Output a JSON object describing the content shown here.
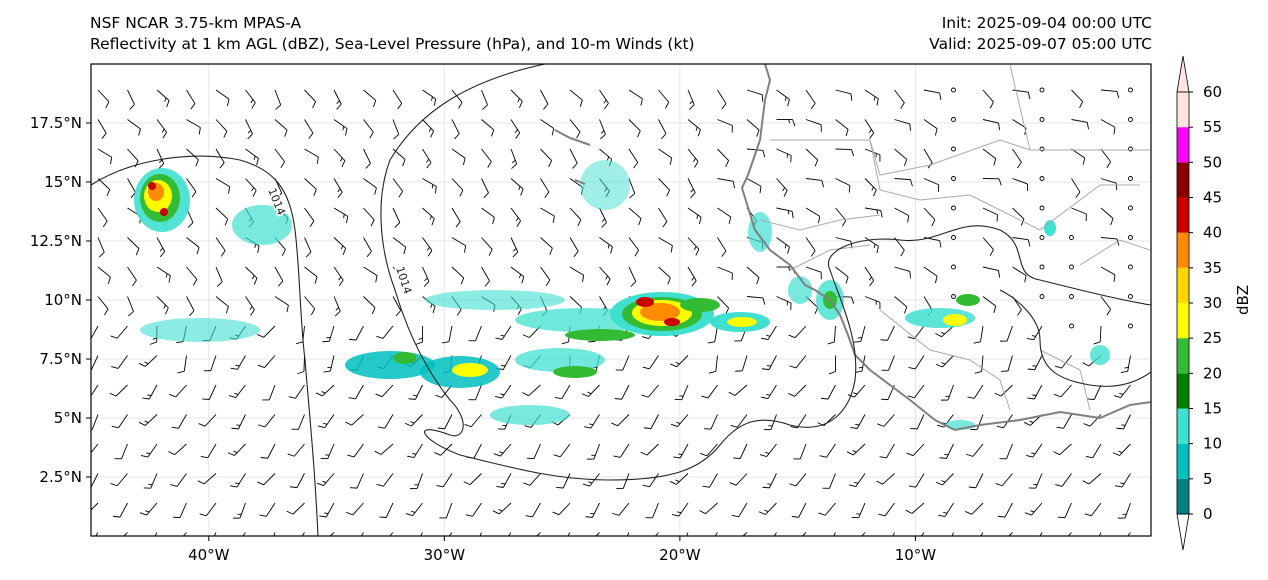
{
  "header": {
    "model": "NSF NCAR 3.75-km MPAS-A",
    "fields": "Reflectivity at 1 km AGL (dBZ), Sea-Level Pressure (hPa), and 10-m Winds (kt)",
    "init": "Init: 2025-09-04 00:00 UTC",
    "valid": "Valid: 2025-09-07 05:00 UTC"
  },
  "axes": {
    "lon_ticks": [
      "40°W",
      "30°W",
      "20°W",
      "10°W"
    ],
    "lat_ticks": [
      "17.5°N",
      "15°N",
      "12.5°N",
      "10°N",
      "7.5°N",
      "5°N",
      "2.5°N"
    ],
    "lon_range": [
      -45,
      0
    ],
    "lat_range": [
      0,
      20
    ]
  },
  "isobar_labels": [
    "1014",
    "1014"
  ],
  "colorbar": {
    "label": "dBZ",
    "ticks": [
      "0",
      "5",
      "10",
      "15",
      "20",
      "25",
      "30",
      "35",
      "40",
      "45",
      "50",
      "55",
      "60"
    ],
    "colors": [
      "#008080",
      "#00bfbf",
      "#40e0d0",
      "#008000",
      "#33bb33",
      "#ffff00",
      "#ffd700",
      "#ff8c00",
      "#cc0000",
      "#8b0000",
      "#ff00ff",
      "#ffe4e1"
    ]
  },
  "map_colors": {
    "coastline": "#7f7f7f",
    "borders": "#aaaaaa",
    "isobar": "#222222",
    "grid": "#e6e6e6"
  }
}
